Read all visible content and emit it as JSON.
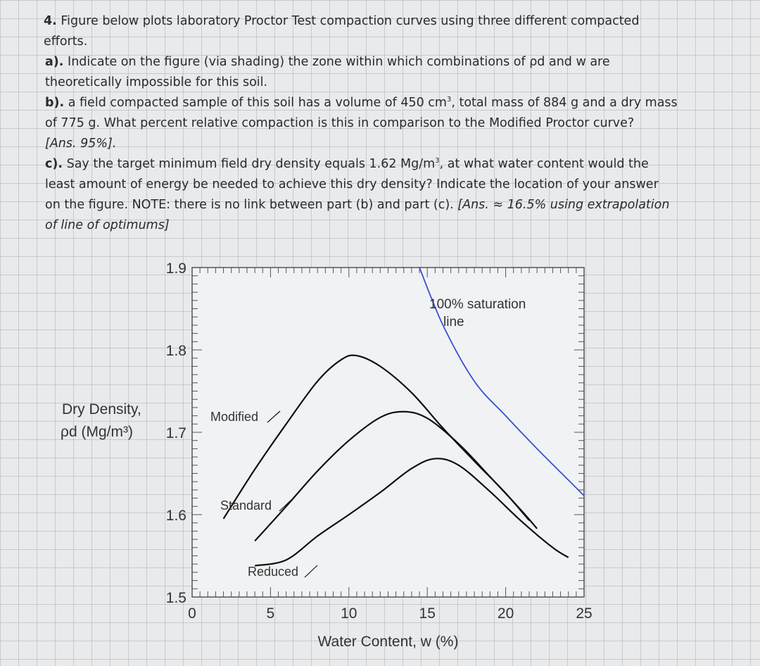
{
  "problem": {
    "q_num": "4.",
    "intro_line1": " Figure below plots laboratory Proctor Test compaction curves using three different compacted",
    "intro_line2": "efforts.",
    "a_label": "a).",
    "a_line1": " Indicate on the figure (via shading) the zone within which combinations of ρd and w are",
    "a_line2": "theoretically impossible for this soil.",
    "b_label": "b).",
    "b_line1a": " a field compacted sample of this soil has a volume of 450 cm",
    "b_sup": "3",
    "b_line1b": ", total mass of 884 g and a dry mass",
    "b_line2": "of 775 g. What percent relative compaction is this in comparison to the Modified Proctor curve?",
    "b_line3": "[Ans. 95%].",
    "c_label": "c).",
    "c_line1a": " Say the target minimum field dry density equals 1.62 Mg/m",
    "c_sup": "3",
    "c_line1b": ", at what water content would the",
    "c_line2": "least amount of energy be needed to achieve this dry density? Indicate the location of your answer",
    "c_line3a": "on the figure. NOTE: there is no link between part (b) and part (c). ",
    "c_line3b": "[Ans. ≈ 16.5% using extrapolation",
    "c_line4": "of line of optimums]"
  },
  "colors": {
    "curve": "#111111",
    "saturation": "#3a4fd0",
    "axis": "#555555"
  },
  "chart_data": {
    "type": "line",
    "xlabel": "Water Content, w (%)",
    "ylabel_line1": "Dry Density,",
    "ylabel_line2": "ρd (Mg/m³)",
    "xlim": [
      0,
      25
    ],
    "ylim": [
      1.5,
      1.9
    ],
    "xticks": [
      0,
      5,
      10,
      15,
      20,
      25
    ],
    "yticks": [
      1.5,
      1.6,
      1.7,
      1.8,
      1.9
    ],
    "grid": false,
    "series": [
      {
        "name": "Modified",
        "color": "#111111",
        "x": [
          2.0,
          4.0,
          6.0,
          8.0,
          9.5,
          10.5,
          12.0,
          14.0,
          16.0,
          18.0,
          20.0,
          21.5
        ],
        "y": [
          1.595,
          1.655,
          1.71,
          1.762,
          1.788,
          1.793,
          1.78,
          1.748,
          1.705,
          1.665,
          1.626,
          1.593
        ]
      },
      {
        "name": "Standard",
        "color": "#111111",
        "x": [
          4.0,
          6.0,
          8.0,
          10.0,
          12.0,
          13.5,
          15.0,
          17.0,
          19.0,
          21.0,
          22.0
        ],
        "y": [
          1.568,
          1.61,
          1.653,
          1.69,
          1.718,
          1.725,
          1.717,
          1.686,
          1.646,
          1.605,
          1.583
        ]
      },
      {
        "name": "Reduced",
        "color": "#111111",
        "x": [
          4.0,
          6.0,
          8.0,
          10.0,
          12.0,
          14.0,
          15.5,
          17.0,
          19.0,
          21.0,
          23.0,
          24.0
        ],
        "y": [
          1.538,
          1.545,
          1.574,
          1.6,
          1.627,
          1.656,
          1.668,
          1.66,
          1.628,
          1.592,
          1.56,
          1.548
        ]
      },
      {
        "name": "100% saturation line",
        "color": "#3a4fd0",
        "x": [
          14.5,
          16.0,
          18.0,
          20.0,
          22.0,
          24.0,
          25.0
        ],
        "y": [
          1.9,
          1.83,
          1.762,
          1.72,
          1.68,
          1.642,
          1.623
        ]
      }
    ],
    "annotations": {
      "modified": "Modified",
      "standard": "Standard",
      "reduced": "Reduced",
      "saturation_line1": "100% saturation",
      "saturation_line2": "line"
    }
  }
}
